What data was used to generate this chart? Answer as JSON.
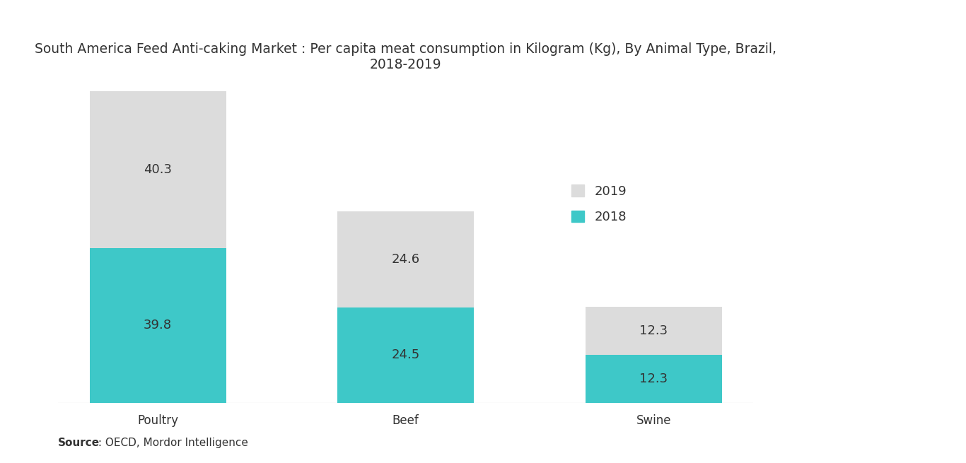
{
  "title": "South America Feed Anti-caking Market : Per capita meat consumption in Kilogram (Kg), By Animal Type, Brazil,\n2018-2019",
  "categories": [
    "Poultry",
    "Beef",
    "Swine"
  ],
  "values_2018": [
    39.8,
    24.5,
    12.3
  ],
  "values_2019": [
    40.3,
    24.6,
    12.3
  ],
  "color_2018": "#3EC8C8",
  "color_2019": "#DCDCDC",
  "bar_width": 0.55,
  "source_bold": "Source",
  "source_rest": " : OECD, Mordor Intelligence",
  "background_color": "#FFFFFF",
  "text_color": "#333333",
  "title_fontsize": 13.5,
  "label_fontsize": 13,
  "tick_fontsize": 12,
  "legend_fontsize": 13,
  "source_fontsize": 11,
  "ylim": [
    0,
    88
  ],
  "x_positions": [
    0,
    1,
    2
  ],
  "legend_2019_label": "2019",
  "legend_2018_label": "2018"
}
